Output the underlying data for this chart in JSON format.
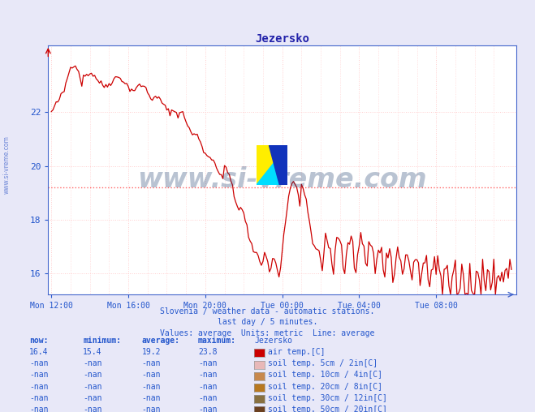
{
  "title": "Jezersko",
  "title_color": "#2222aa",
  "bg_color": "#e8e8f8",
  "plot_bg_color": "#ffffff",
  "line_color": "#cc0000",
  "line_width": 1.0,
  "ylabel_color": "#2255cc",
  "xlabel_color": "#2255cc",
  "grid_color_minor": "#ffcccc",
  "avg_line_color": "#ff6666",
  "avg_value": 19.2,
  "ylim": [
    15.2,
    24.5
  ],
  "yticks": [
    16,
    18,
    20,
    22
  ],
  "ytick_labels": [
    "16",
    "18",
    "20",
    "22"
  ],
  "xtick_labels": [
    "Mon 12:00",
    "Mon 16:00",
    "Mon 20:00",
    "Tue 00:00",
    "Tue 04:00",
    "Tue 08:00"
  ],
  "watermark": "www.si-vreme.com",
  "watermark_color": "#1a3a6a",
  "watermark_alpha": 0.3,
  "subtitle1": "Slovenia / weather data - automatic stations.",
  "subtitle2": "last day / 5 minutes.",
  "subtitle3": "Values: average  Units: metric  Line: average",
  "subtitle_color": "#2255cc",
  "legend_header": [
    "now:",
    "minimum:",
    "average:",
    "maximum:",
    "Jezersko"
  ],
  "legend_rows": [
    [
      "16.4",
      "15.4",
      "19.2",
      "23.8",
      "#cc0000",
      "air temp.[C]"
    ],
    [
      "-nan",
      "-nan",
      "-nan",
      "-nan",
      "#e8b8b8",
      "soil temp. 5cm / 2in[C]"
    ],
    [
      "-nan",
      "-nan",
      "-nan",
      "-nan",
      "#c8884c",
      "soil temp. 10cm / 4in[C]"
    ],
    [
      "-nan",
      "-nan",
      "-nan",
      "-nan",
      "#b87820",
      "soil temp. 20cm / 8in[C]"
    ],
    [
      "-nan",
      "-nan",
      "-nan",
      "-nan",
      "#887040",
      "soil temp. 30cm / 12in[C]"
    ],
    [
      "-nan",
      "-nan",
      "-nan",
      "-nan",
      "#6b4020",
      "soil temp. 50cm / 20in[C]"
    ]
  ],
  "legend_color": "#2255cc",
  "sidewater": "www.si-vreme.com",
  "n_points": 288
}
